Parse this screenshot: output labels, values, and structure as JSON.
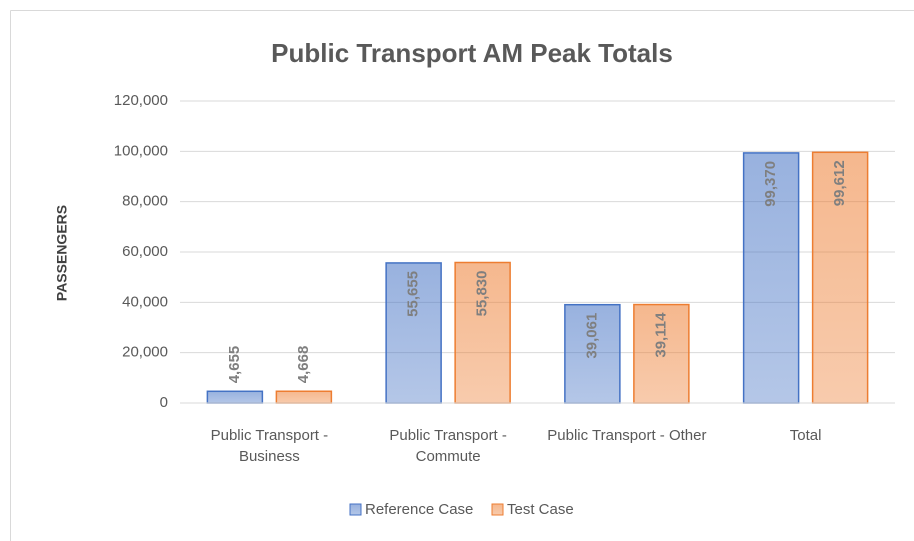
{
  "chart_data": {
    "type": "bar",
    "title": "Public Transport  AM Peak Totals",
    "y_label": "PASSENGERS",
    "categories": [
      "Public Transport - Business",
      "Public Transport - Commute",
      "Public Transport - Other",
      "Total"
    ],
    "series": [
      {
        "name": "Reference Case",
        "color": "#4472c4",
        "values": [
          4655,
          55655,
          39061,
          99370
        ],
        "value_labels": [
          "4,655",
          "55,655",
          "39,061",
          "99,370"
        ]
      },
      {
        "name": "Test Case",
        "color": "#ed7d31",
        "values": [
          4668,
          55830,
          39114,
          99612
        ],
        "value_labels": [
          "4,668",
          "55,830",
          "39,114",
          "99,612"
        ]
      }
    ],
    "ylim": [
      0,
      120000
    ],
    "yticks": [
      0,
      {
        "value": 20000,
        "label": "20,000"
      },
      {
        "value": 40000,
        "label": "40,000"
      },
      {
        "value": 60000,
        "label": "60,000"
      },
      {
        "value": 80000,
        "label": "80,000"
      },
      {
        "value": 100000,
        "label": "100,000"
      },
      {
        "value": 120000,
        "label": "120,000"
      }
    ],
    "grid": true,
    "legend": "bottom"
  }
}
